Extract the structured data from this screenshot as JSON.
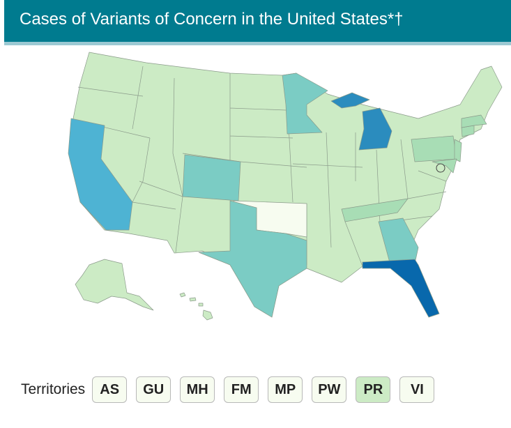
{
  "header": {
    "title": "Cases of Variants of Concern in the United States*†"
  },
  "territories": {
    "label": "Territories",
    "items": [
      {
        "label": "AS",
        "color": "#f7fcf0"
      },
      {
        "label": "GU",
        "color": "#f7fcf0"
      },
      {
        "label": "MH",
        "color": "#f7fcf0"
      },
      {
        "label": "FM",
        "color": "#f7fcf0"
      },
      {
        "label": "MP",
        "color": "#f7fcf0"
      },
      {
        "label": "PW",
        "color": "#f7fcf0"
      },
      {
        "label": "PR",
        "color": "#ccebc5"
      },
      {
        "label": "VI",
        "color": "#f7fcf0"
      }
    ]
  }
}
